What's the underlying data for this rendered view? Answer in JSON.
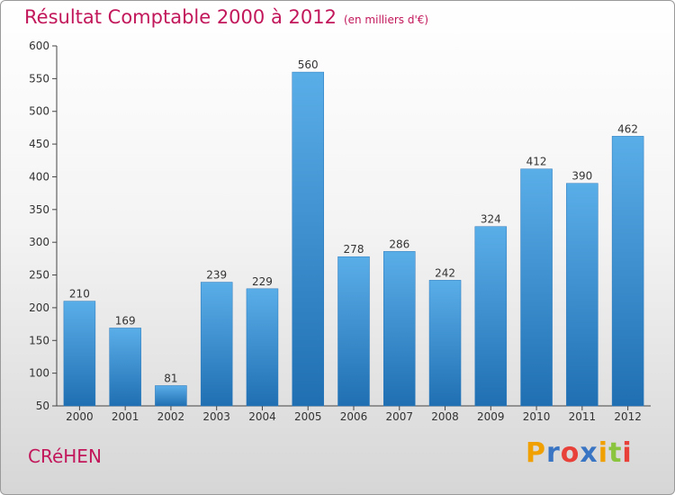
{
  "header": {
    "title": "Résultat Comptable 2000 à 2012",
    "unit": "(en milliers d'€)"
  },
  "town": "CRéHEN",
  "logo": {
    "letters": [
      "P",
      "r",
      "o",
      "x",
      "i",
      "t",
      "i"
    ],
    "colors": [
      "#f0a000",
      "#3a75c4",
      "#e8413a",
      "#3a75c4",
      "#f0a000",
      "#8bc43f",
      "#e8413a"
    ]
  },
  "colors": {
    "title": "#c2185b",
    "bar_top": "#5aaee8",
    "bar_bottom": "#1f6fb2"
  },
  "chart_data": {
    "type": "bar",
    "categories": [
      "2000",
      "2001",
      "2002",
      "2003",
      "2004",
      "2005",
      "2006",
      "2007",
      "2008",
      "2009",
      "2010",
      "2011",
      "2012"
    ],
    "values": [
      210,
      169,
      81,
      239,
      229,
      560,
      278,
      286,
      242,
      324,
      412,
      390,
      462
    ],
    "title": "Résultat Comptable 2000 à 2012",
    "xlabel": "",
    "ylabel": "",
    "ylim": [
      50,
      600
    ],
    "yticks": [
      50,
      100,
      150,
      200,
      250,
      300,
      350,
      400,
      450,
      500,
      550,
      600
    ],
    "grid": false,
    "data_labels": true
  }
}
